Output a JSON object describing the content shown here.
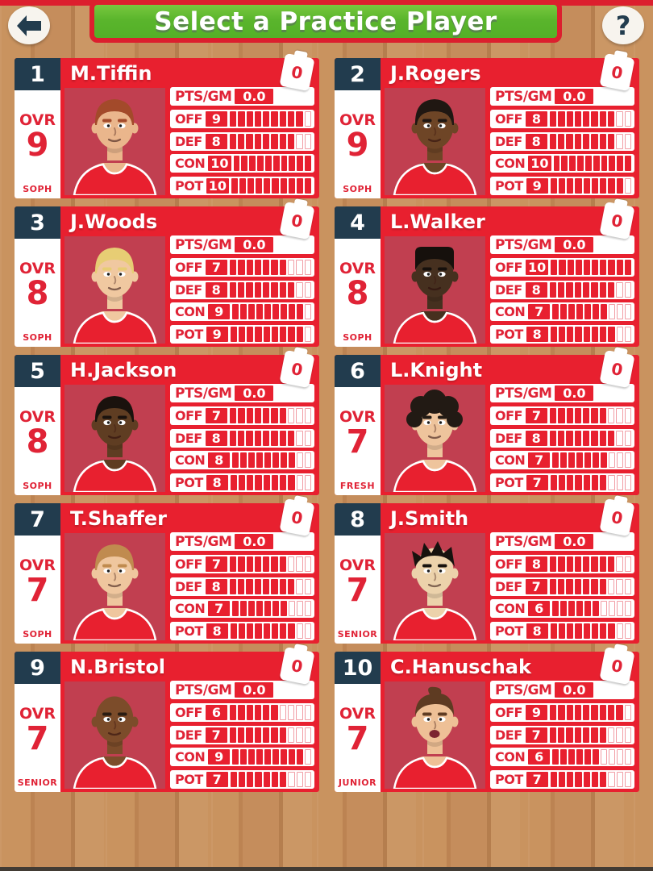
{
  "header": {
    "title": "Select a Practice Player",
    "back_icon": "left-arrow",
    "help_label": "?"
  },
  "labels": {
    "ovr": "OVR",
    "pts_gm": "PTS/GM",
    "off": "OFF",
    "def": "DEF",
    "con": "CON",
    "pot": "POT"
  },
  "gauge_max": 10,
  "colors": {
    "bright_red": "#e8202f",
    "muted_red": "#c13f50",
    "navy": "#223c4e",
    "green": "#56b42a",
    "wood": "#c08a5b",
    "white": "#ffffff"
  },
  "players": [
    {
      "rank": "1",
      "name": "M.Tiffin",
      "ovr": "9",
      "class": "SOPH",
      "pts_gm": "0.0",
      "off": 9,
      "def": 8,
      "con": 10,
      "pot": 10,
      "badge_count": "0",
      "avatar": {
        "skin": "#eab68c",
        "hair": "#a34a2a",
        "style": "short",
        "mouth": "closed"
      }
    },
    {
      "rank": "2",
      "name": "J.Rogers",
      "ovr": "9",
      "class": "SOPH",
      "pts_gm": "0.0",
      "off": 8,
      "def": 8,
      "con": 10,
      "pot": 9,
      "badge_count": "0",
      "avatar": {
        "skin": "#6e4526",
        "hair": "#201712",
        "style": "short",
        "mouth": "closed"
      }
    },
    {
      "rank": "3",
      "name": "J.Woods",
      "ovr": "8",
      "class": "SOPH",
      "pts_gm": "0.0",
      "off": 7,
      "def": 8,
      "con": 9,
      "pot": 9,
      "badge_count": "0",
      "avatar": {
        "skin": "#f0c8a0",
        "hair": "#e7cd74",
        "style": "short",
        "mouth": "closed"
      }
    },
    {
      "rank": "4",
      "name": "L.Walker",
      "ovr": "8",
      "class": "SOPH",
      "pts_gm": "0.0",
      "off": 10,
      "def": 8,
      "con": 7,
      "pot": 8,
      "badge_count": "0",
      "avatar": {
        "skin": "#46301f",
        "hair": "#16100c",
        "style": "flattop",
        "mouth": "closed"
      }
    },
    {
      "rank": "5",
      "name": "H.Jackson",
      "ovr": "8",
      "class": "SOPH",
      "pts_gm": "0.0",
      "off": 7,
      "def": 8,
      "con": 8,
      "pot": 8,
      "badge_count": "0",
      "avatar": {
        "skin": "#5f3d22",
        "hair": "#1a120d",
        "style": "short",
        "mouth": "closed"
      }
    },
    {
      "rank": "6",
      "name": "L.Knight",
      "ovr": "7",
      "class": "FRESH",
      "pts_gm": "0.0",
      "off": 7,
      "def": 8,
      "con": 7,
      "pot": 7,
      "badge_count": "0",
      "avatar": {
        "skin": "#eec49c",
        "hair": "#221a14",
        "style": "curly",
        "mouth": "closed"
      }
    },
    {
      "rank": "7",
      "name": "T.Shaffer",
      "ovr": "7",
      "class": "SOPH",
      "pts_gm": "0.0",
      "off": 7,
      "def": 8,
      "con": 7,
      "pot": 8,
      "badge_count": "0",
      "avatar": {
        "skin": "#efc69e",
        "hair": "#c08b4f",
        "style": "short",
        "mouth": "closed"
      }
    },
    {
      "rank": "8",
      "name": "J.Smith",
      "ovr": "7",
      "class": "SENIOR",
      "pts_gm": "0.0",
      "off": 8,
      "def": 7,
      "con": 6,
      "pot": 8,
      "badge_count": "0",
      "avatar": {
        "skin": "#ecd2ab",
        "hair": "#17120e",
        "style": "spiky",
        "mouth": "closed"
      }
    },
    {
      "rank": "9",
      "name": "N.Bristol",
      "ovr": "7",
      "class": "SENIOR",
      "pts_gm": "0.0",
      "off": 6,
      "def": 7,
      "con": 9,
      "pot": 7,
      "badge_count": "0",
      "avatar": {
        "skin": "#7c4c2a",
        "hair": "#3a281a",
        "style": "bald",
        "mouth": "closed"
      }
    },
    {
      "rank": "10",
      "name": "C.Hanuschak",
      "ovr": "7",
      "class": "JUNIOR",
      "pts_gm": "0.0",
      "off": 9,
      "def": 7,
      "con": 6,
      "pot": 7,
      "badge_count": "0",
      "avatar": {
        "skin": "#eec096",
        "hair": "#5e3b22",
        "style": "quiff",
        "mouth": "open"
      }
    }
  ]
}
